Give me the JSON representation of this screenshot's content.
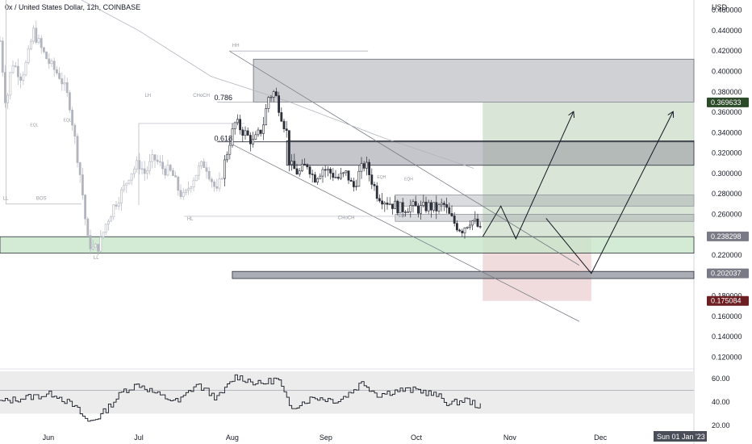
{
  "header": {
    "title": "0x / United States Dollar, 12h, COINBASE",
    "currency": "USD"
  },
  "colors": {
    "candle": "#2a2e39",
    "candle_faded": "#b2b5be",
    "demand_zone": "#c8e6c9",
    "supply_zone": "#9598a1",
    "target_zone": "#b9d0b5",
    "stop_zone": "#e8c4c7",
    "stop_label": "#6b1f23",
    "target_label": "#2c4a2a",
    "grey_label": "#787b86",
    "rsi_band": "#ececec"
  },
  "chart_data": [
    {
      "type": "candlestick",
      "title": "0x / United States Dollar, 12h, COINBASE",
      "ylabel": "USD",
      "ylim": [
        0.11,
        0.47
      ],
      "y_ticks": [
        "0.460000",
        "0.440000",
        "0.420000",
        "0.400000",
        "0.380000",
        "0.360000",
        "0.340000",
        "0.320000",
        "0.300000",
        "0.280000",
        "0.260000",
        "0.240000",
        "0.220000",
        "0.200000",
        "0.180000",
        "0.160000",
        "0.140000",
        "0.120000"
      ],
      "x_ticks": [
        "Jun",
        "Jul",
        "Aug",
        "Sep",
        "Oct",
        "Nov",
        "Dec"
      ],
      "x_range": [
        "2022-05-16",
        "2023-01-01"
      ],
      "close_path": [
        [
          "2022-05-16",
          0.43
        ],
        [
          "2022-05-18",
          0.365
        ],
        [
          "2022-05-20",
          0.41
        ],
        [
          "2022-05-23",
          0.395
        ],
        [
          "2022-05-25",
          0.41
        ],
        [
          "2022-05-27",
          0.44
        ],
        [
          "2022-05-30",
          0.42
        ],
        [
          "2022-06-02",
          0.405
        ],
        [
          "2022-06-05",
          0.395
        ],
        [
          "2022-06-08",
          0.37
        ],
        [
          "2022-06-10",
          0.33
        ],
        [
          "2022-06-12",
          0.29
        ],
        [
          "2022-06-14",
          0.235
        ],
        [
          "2022-06-16",
          0.225
        ],
        [
          "2022-06-18",
          0.23
        ],
        [
          "2022-06-20",
          0.25
        ],
        [
          "2022-06-23",
          0.27
        ],
        [
          "2022-06-26",
          0.285
        ],
        [
          "2022-06-28",
          0.3
        ],
        [
          "2022-07-01",
          0.31
        ],
        [
          "2022-07-03",
          0.3
        ],
        [
          "2022-07-06",
          0.315
        ],
        [
          "2022-07-09",
          0.305
        ],
        [
          "2022-07-12",
          0.3
        ],
        [
          "2022-07-14",
          0.285
        ],
        [
          "2022-07-16",
          0.275
        ],
        [
          "2022-07-18",
          0.29
        ],
        [
          "2022-07-21",
          0.305
        ],
        [
          "2022-07-23",
          0.31
        ],
        [
          "2022-07-25",
          0.295
        ],
        [
          "2022-07-27",
          0.28
        ],
        [
          "2022-07-29",
          0.305
        ],
        [
          "2022-07-31",
          0.33
        ],
        [
          "2022-08-02",
          0.35
        ],
        [
          "2022-08-05",
          0.34
        ],
        [
          "2022-08-08",
          0.33
        ],
        [
          "2022-08-11",
          0.345
        ],
        [
          "2022-08-13",
          0.375
        ],
        [
          "2022-08-15",
          0.38
        ],
        [
          "2022-08-17",
          0.36
        ],
        [
          "2022-08-19",
          0.34
        ],
        [
          "2022-08-20",
          0.308
        ],
        [
          "2022-08-23",
          0.3
        ],
        [
          "2022-08-26",
          0.31
        ],
        [
          "2022-08-28",
          0.295
        ],
        [
          "2022-08-31",
          0.305
        ],
        [
          "2022-09-03",
          0.3
        ],
        [
          "2022-09-05",
          0.295
        ],
        [
          "2022-09-08",
          0.3
        ],
        [
          "2022-09-10",
          0.285
        ],
        [
          "2022-09-12",
          0.3
        ],
        [
          "2022-09-14",
          0.31
        ],
        [
          "2022-09-16",
          0.295
        ],
        [
          "2022-09-18",
          0.28
        ],
        [
          "2022-09-20",
          0.275
        ],
        [
          "2022-09-23",
          0.27
        ],
        [
          "2022-09-26",
          0.265
        ],
        [
          "2022-09-29",
          0.268
        ],
        [
          "2022-10-02",
          0.265
        ],
        [
          "2022-10-05",
          0.268
        ],
        [
          "2022-10-08",
          0.265
        ],
        [
          "2022-10-10",
          0.27
        ],
        [
          "2022-10-12",
          0.258
        ],
        [
          "2022-10-14",
          0.25
        ],
        [
          "2022-10-16",
          0.245
        ],
        [
          "2022-10-19",
          0.255
        ],
        [
          "2022-10-21",
          0.25
        ],
        [
          "2022-10-23",
          0.238
        ]
      ],
      "annotations": [
        {
          "text": "0.786"
        },
        {
          "text": "0.618"
        },
        {
          "text": "HH"
        },
        {
          "text": "LH"
        },
        {
          "text": "CHoCH"
        },
        {
          "text": "CHoCH"
        },
        {
          "text": "HL"
        },
        {
          "text": "LL"
        },
        {
          "text": "LL"
        },
        {
          "text": "BOS"
        },
        {
          "text": "EQL"
        },
        {
          "text": "EQL"
        },
        {
          "text": "EQL"
        },
        {
          "text": "EQH"
        },
        {
          "text": "EQH"
        }
      ],
      "price_labels": [
        {
          "text": "0.369633",
          "value": 0.369633,
          "role": "target"
        },
        {
          "text": "0.238298",
          "value": 0.238298,
          "role": "last"
        },
        {
          "text": "0.202037",
          "value": 0.202037,
          "role": "level"
        },
        {
          "text": "0.175084",
          "value": 0.175084,
          "role": "stop"
        }
      ],
      "zones": [
        {
          "name": "supply-upper",
          "from_date": "2022-08-08",
          "to_date": "2023-01-01",
          "low": 0.37,
          "high": 0.412
        },
        {
          "name": "supply-mid",
          "from_date": "2022-08-19",
          "to_date": "2023-01-01",
          "low": 0.308,
          "high": 0.332
        },
        {
          "name": "supply-small",
          "from_date": "2022-09-24",
          "to_date": "2023-01-01",
          "low": 0.268,
          "high": 0.279
        },
        {
          "name": "supply-small-2",
          "from_date": "2022-09-24",
          "to_date": "2023-01-01",
          "low": 0.253,
          "high": 0.26
        },
        {
          "name": "demand",
          "from_date": "2022-05-16",
          "to_date": "2023-01-01",
          "low": 0.222,
          "high": 0.238
        },
        {
          "name": "grey-level",
          "from_date": "2022-08-01",
          "to_date": "2023-01-01",
          "low": 0.197,
          "high": 0.204
        },
        {
          "name": "target",
          "from_date": "2022-10-23",
          "to_date": "2023-01-01",
          "low": 0.238,
          "high": 0.369633
        },
        {
          "name": "stop",
          "from_date": "2022-10-23",
          "to_date": "2022-11-28",
          "low": 0.175084,
          "high": 0.238298
        }
      ],
      "projection_paths": [
        [
          [
            "2022-10-23",
            0.238
          ],
          [
            "2022-10-29",
            0.268
          ],
          [
            "2022-11-03",
            0.236
          ],
          [
            "2022-11-22",
            0.36
          ]
        ],
        [
          [
            "2022-11-13",
            0.256
          ],
          [
            "2022-11-28",
            0.202
          ],
          [
            "2022-12-25",
            0.36
          ]
        ]
      ]
    },
    {
      "type": "line",
      "name": "rsi-pane",
      "ylim": [
        18,
        66
      ],
      "y_ticks": [
        "60.00",
        "40.00",
        "20.00"
      ],
      "band": [
        30,
        70
      ],
      "midline": 50,
      "values_path": [
        [
          "2022-05-16",
          40
        ],
        [
          "2022-05-25",
          44
        ],
        [
          "2022-06-03",
          47
        ],
        [
          "2022-06-10",
          35
        ],
        [
          "2022-06-14",
          23
        ],
        [
          "2022-06-18",
          28
        ],
        [
          "2022-06-26",
          50
        ],
        [
          "2022-07-01",
          55
        ],
        [
          "2022-07-08",
          45
        ],
        [
          "2022-07-14",
          40
        ],
        [
          "2022-07-20",
          55
        ],
        [
          "2022-07-27",
          43
        ],
        [
          "2022-08-02",
          62
        ],
        [
          "2022-08-10",
          55
        ],
        [
          "2022-08-16",
          60
        ],
        [
          "2022-08-20",
          35
        ],
        [
          "2022-08-28",
          44
        ],
        [
          "2022-09-05",
          41
        ],
        [
          "2022-09-10",
          50
        ],
        [
          "2022-09-13",
          57
        ],
        [
          "2022-09-18",
          46
        ],
        [
          "2022-09-25",
          50
        ],
        [
          "2022-10-02",
          50
        ],
        [
          "2022-10-08",
          45
        ],
        [
          "2022-10-12",
          38
        ],
        [
          "2022-10-17",
          42
        ],
        [
          "2022-10-23",
          35
        ]
      ]
    }
  ],
  "bottom_axis": {
    "date_label": "Sun 01 Jan '23"
  }
}
